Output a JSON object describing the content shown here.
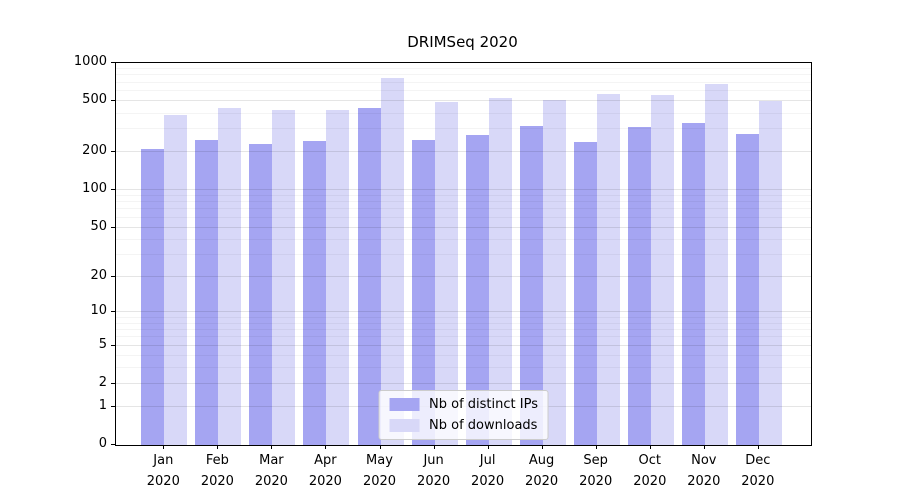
{
  "figure": {
    "background": "#ffffff",
    "axis_color": "#000000"
  },
  "chart_data": {
    "type": "bar",
    "title": "DRIMSeq 2020",
    "xlabel": "",
    "ylabel": "",
    "yscale": "log1p",
    "ylim": [
      0,
      1000
    ],
    "grid": "horizontal",
    "legend_position": "lower center",
    "y_ticks": [
      0,
      1,
      2,
      5,
      10,
      20,
      50,
      100,
      200,
      500,
      1000
    ],
    "y_minor_ticks": [
      3,
      4,
      6,
      7,
      8,
      9,
      30,
      40,
      60,
      70,
      80,
      90,
      300,
      400,
      600,
      700,
      800,
      900
    ],
    "categories": [
      "Jan 2020",
      "Feb 2020",
      "Mar 2020",
      "Apr 2020",
      "May 2020",
      "Jun 2020",
      "Jul 2020",
      "Aug 2020",
      "Sep 2020",
      "Oct 2020",
      "Nov 2020",
      "Dec 2020"
    ],
    "x_tick_labels": [
      [
        "Jan",
        "2020"
      ],
      [
        "Feb",
        "2020"
      ],
      [
        "Mar",
        "2020"
      ],
      [
        "Apr",
        "2020"
      ],
      [
        "May",
        "2020"
      ],
      [
        "Jun",
        "2020"
      ],
      [
        "Jul",
        "2020"
      ],
      [
        "Aug",
        "2020"
      ],
      [
        "Sep",
        "2020"
      ],
      [
        "Oct",
        "2020"
      ],
      [
        "Nov",
        "2020"
      ],
      [
        "Dec",
        "2020"
      ]
    ],
    "series": [
      {
        "name": "Nb of distinct IPs",
        "color": "#a5a5f2",
        "values": [
          210,
          250,
          230,
          245,
          445,
          250,
          270,
          320,
          240,
          315,
          335,
          275
        ]
      },
      {
        "name": "Nb of downloads",
        "color": "#d8d8f8",
        "values": [
          390,
          445,
          430,
          425,
          760,
          495,
          530,
          510,
          570,
          560,
          680,
          505
        ]
      }
    ]
  }
}
